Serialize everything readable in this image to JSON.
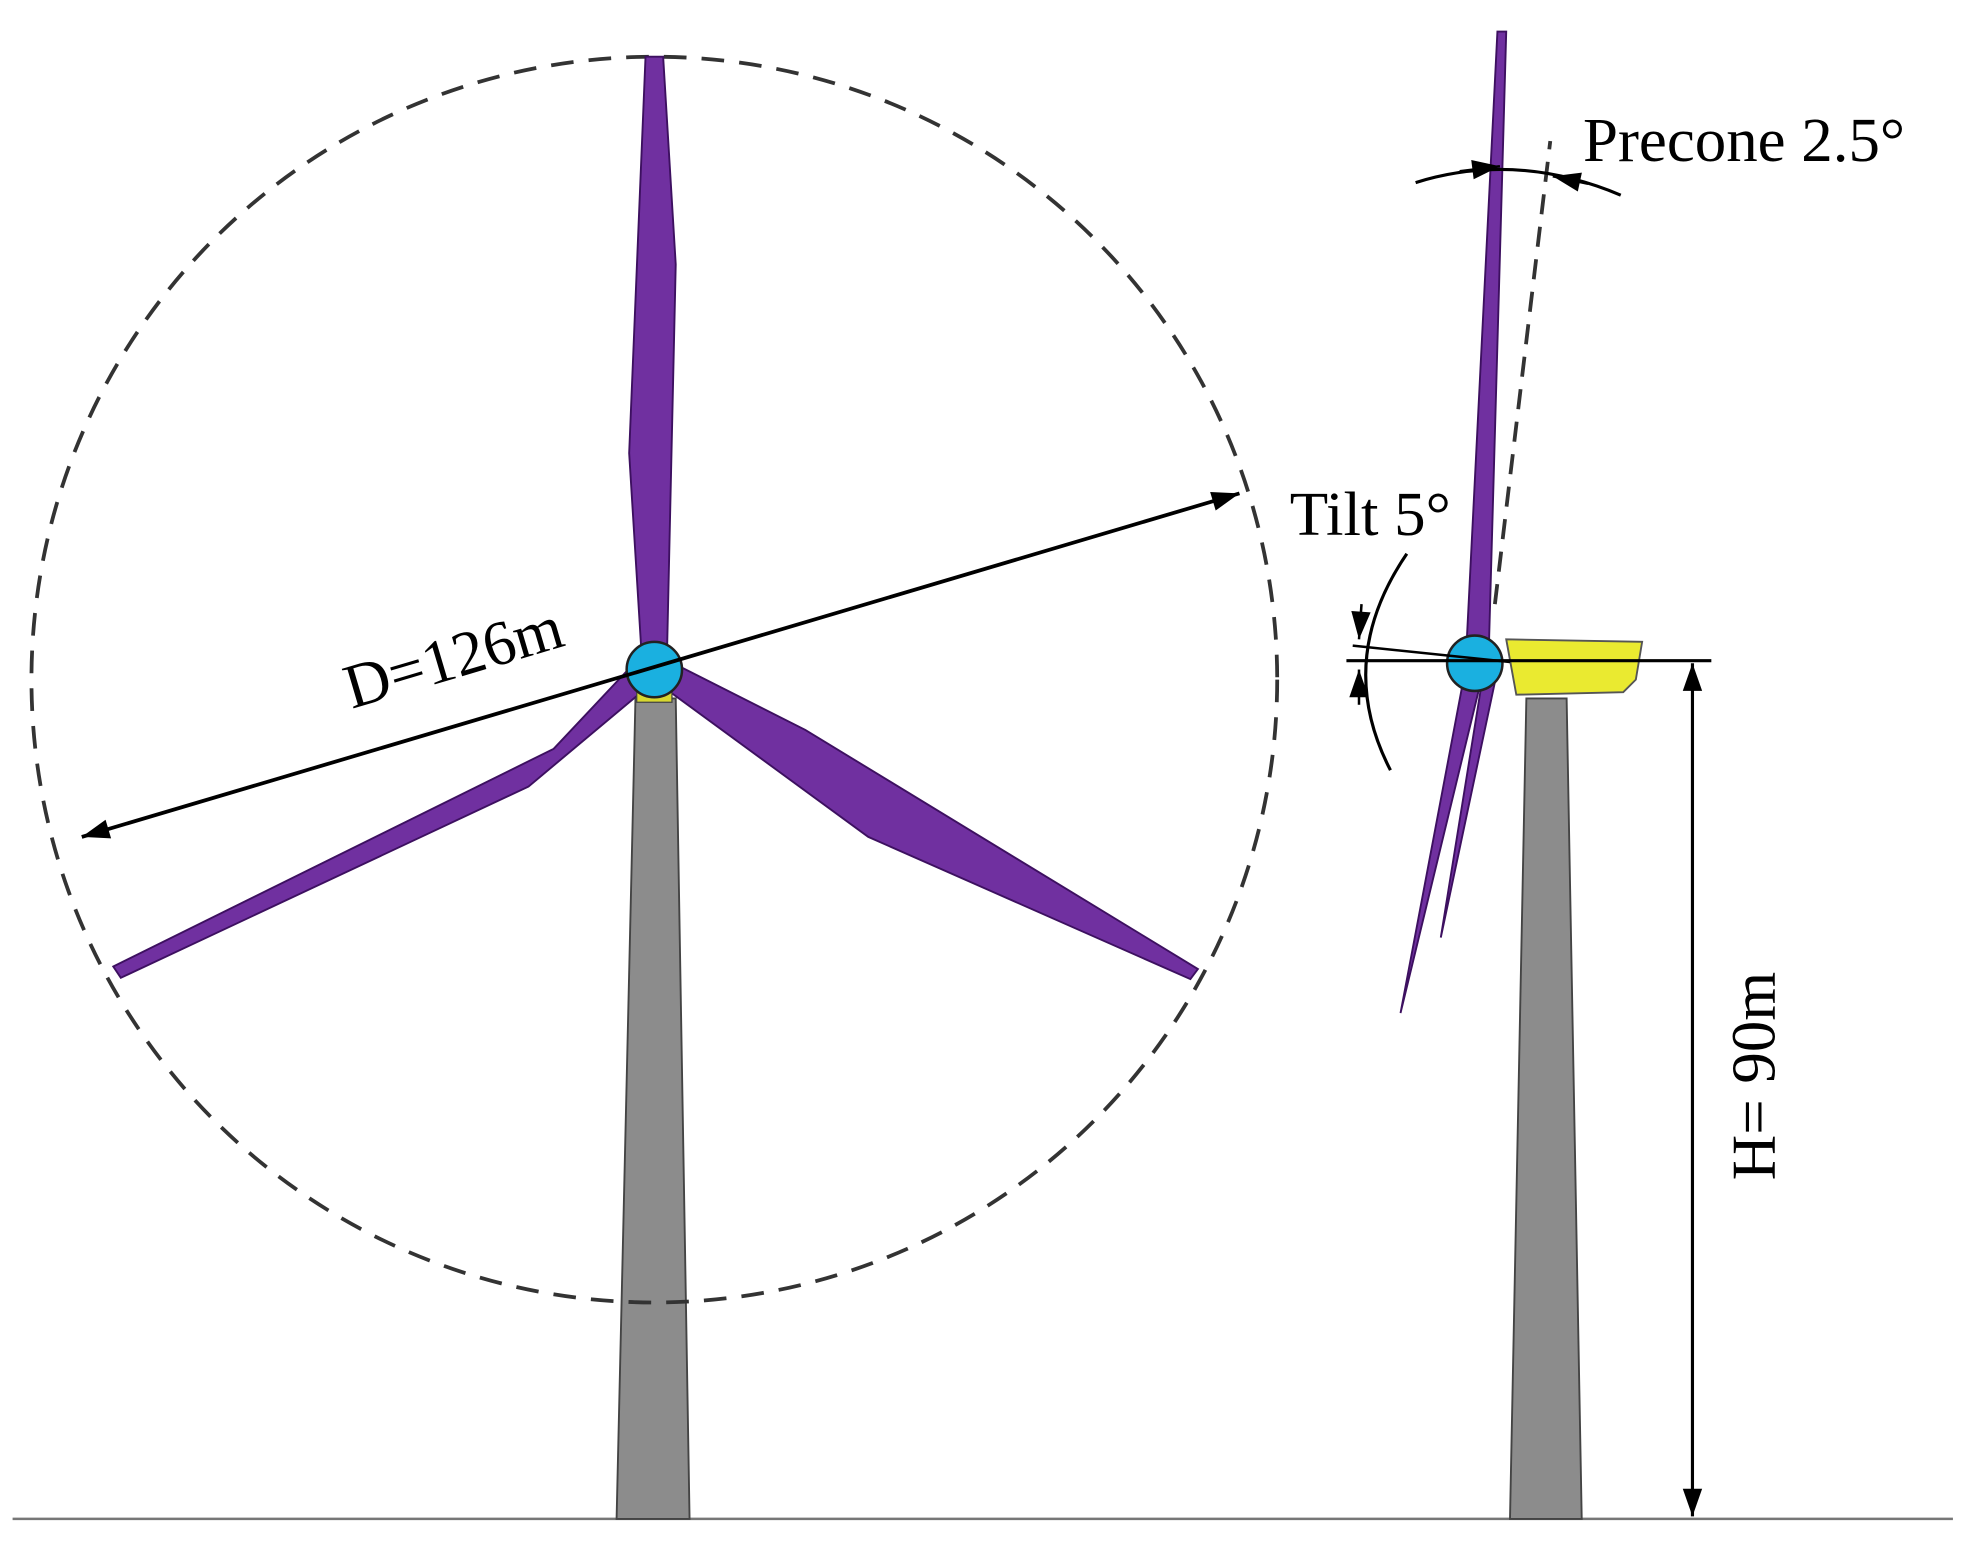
{
  "labels": {
    "precone": "Precone 2.5°",
    "tilt": "Tilt 5°",
    "diameter": "D=126m",
    "hub_height": "H= 90m"
  }
}
